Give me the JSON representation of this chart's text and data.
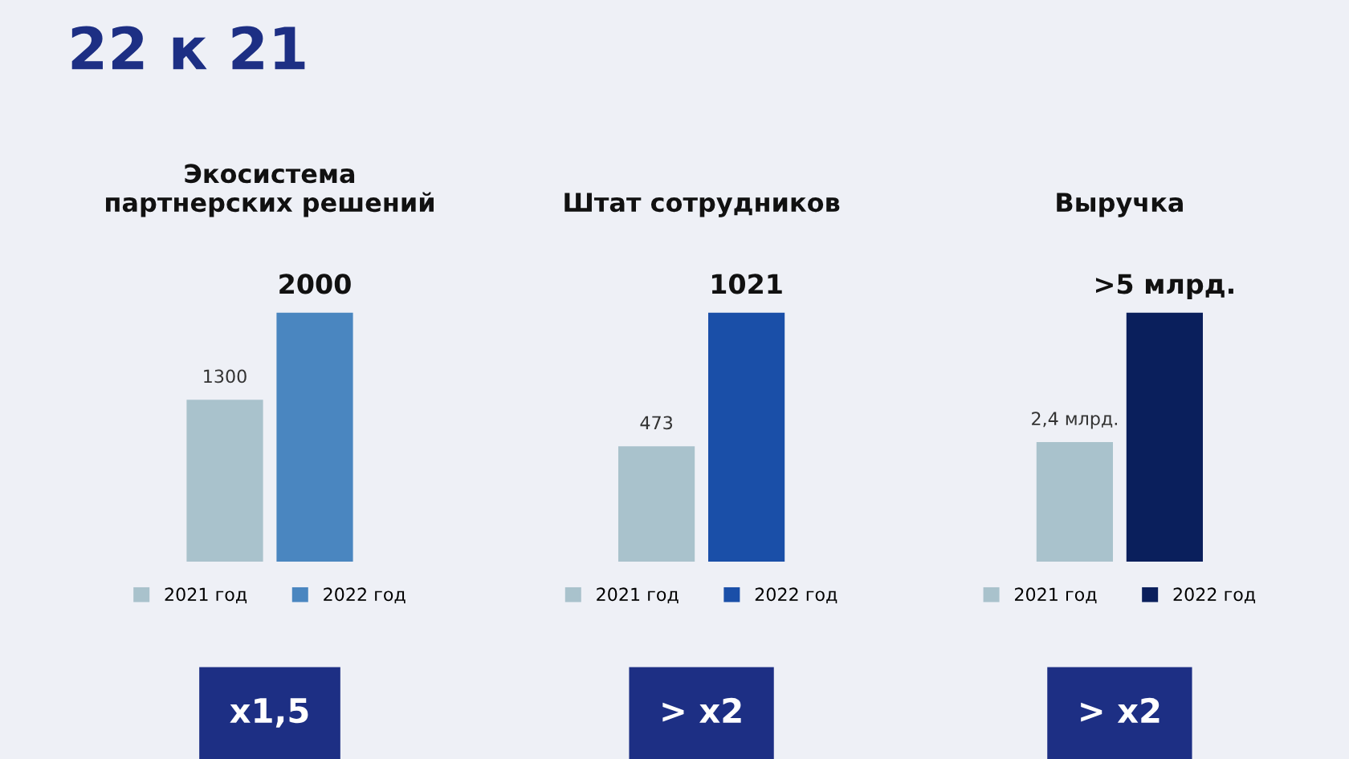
{
  "chart_data": [
    {
      "type": "bar",
      "title": "Экосистема\nпартнерских решений",
      "categories": [
        null
      ],
      "series": [
        {
          "name": "2021 год",
          "color": "#a9c2cc",
          "values": [
            1300
          ]
        },
        {
          "name": "2022 год",
          "color": "#4a86c0",
          "values": [
            2000
          ]
        }
      ],
      "data_labels": true,
      "legend": "bottom",
      "grid": false,
      "annotations": [
        "22 к 21",
        "x1,5"
      ]
    },
    {
      "type": "bar",
      "title": "Штат сотрудников",
      "categories": [
        null
      ],
      "series": [
        {
          "name": "2021 год",
          "color": "#a9c2cc",
          "values": [
            473
          ]
        },
        {
          "name": "2022 год",
          "color": "#1a4fa8",
          "values": [
            1021
          ]
        }
      ],
      "data_labels": true,
      "legend": "bottom",
      "grid": false,
      "annotations": [
        "> x2"
      ]
    },
    {
      "type": "bar",
      "title": "Выручка",
      "categories": [
        null
      ],
      "series": [
        {
          "name": "2021 год",
          "color": "#a9c2cc",
          "values": [
            2.4
          ],
          "value_labels": [
            "2,4 млрд."
          ]
        },
        {
          "name": "2022 год",
          "color": "#0a1f5c",
          "values": [
            5
          ],
          "value_labels": [
            ">5 млрд."
          ]
        }
      ],
      "legend": "bottom",
      "grid": false,
      "annotations": [
        "> x2"
      ]
    }
  ]
}
